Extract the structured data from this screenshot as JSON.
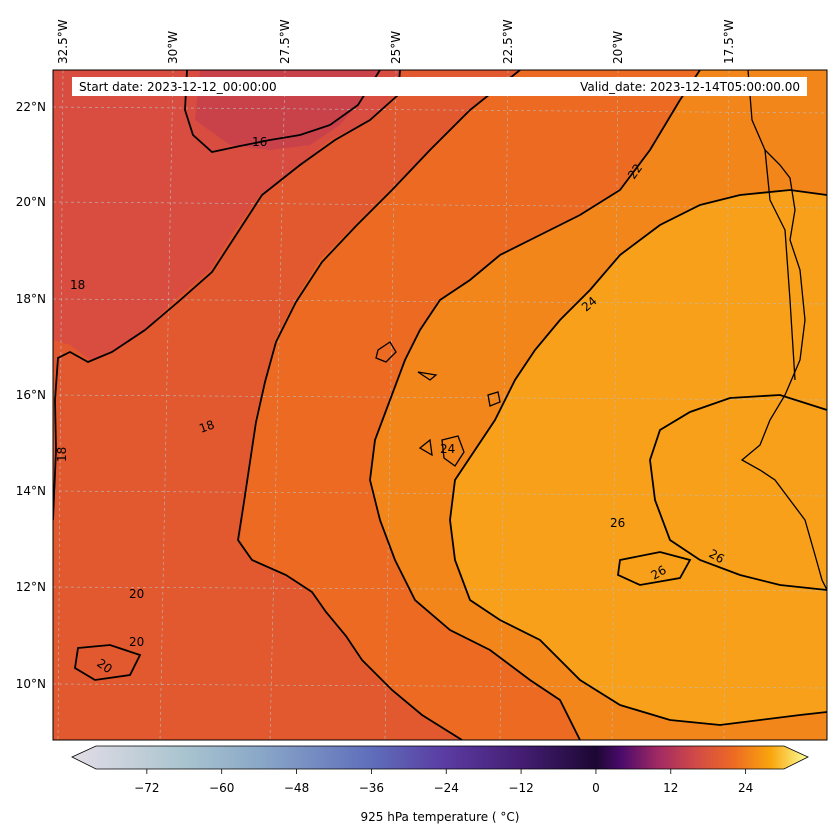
{
  "header": {
    "start_date": "Start date: 2023-12-12_00:00:00",
    "valid_date": "Valid_date: 2023-12-14T05:00:00.00"
  },
  "map": {
    "lon_ticks": [
      "32.5°W",
      "30°W",
      "27.5°W",
      "25°W",
      "22.5°W",
      "20°W",
      "17.5°W"
    ],
    "lat_ticks": [
      "22°N",
      "20°N",
      "18°N",
      "16°N",
      "14°N",
      "12°N",
      "10°N"
    ],
    "contour_labels": [
      "16",
      "18",
      "18",
      "18",
      "20",
      "20",
      "20",
      "22",
      "24",
      "24",
      "26",
      "26",
      "26"
    ],
    "field_colors": {
      "t16": "#c9424a",
      "t18": "#d94d40",
      "t20": "#e2582f",
      "t22": "#ec6a22",
      "t24": "#f3861a",
      "t26": "#f8a019"
    }
  },
  "colorbar": {
    "ticks": [
      "−72",
      "−60",
      "−48",
      "−36",
      "−24",
      "−12",
      "0",
      "12",
      "24"
    ],
    "label": "925 hPa temperature ( °C)",
    "range": [
      -84,
      34
    ],
    "stops": [
      {
        "v": -84,
        "c": "#e3dde6"
      },
      {
        "v": -66,
        "c": "#a9c4cf"
      },
      {
        "v": -54,
        "c": "#8aa8c8"
      },
      {
        "v": -36,
        "c": "#5f6ebb"
      },
      {
        "v": -24,
        "c": "#5a3ba1"
      },
      {
        "v": -12,
        "c": "#451e73"
      },
      {
        "v": 0,
        "c": "#1c0733"
      },
      {
        "v": 4,
        "c": "#4a0b6a"
      },
      {
        "v": 10,
        "c": "#a12a63"
      },
      {
        "v": 16,
        "c": "#d14a47"
      },
      {
        "v": 22,
        "c": "#ed6924"
      },
      {
        "v": 28,
        "c": "#f9a50c"
      },
      {
        "v": 34,
        "c": "#fbff9a"
      }
    ]
  }
}
